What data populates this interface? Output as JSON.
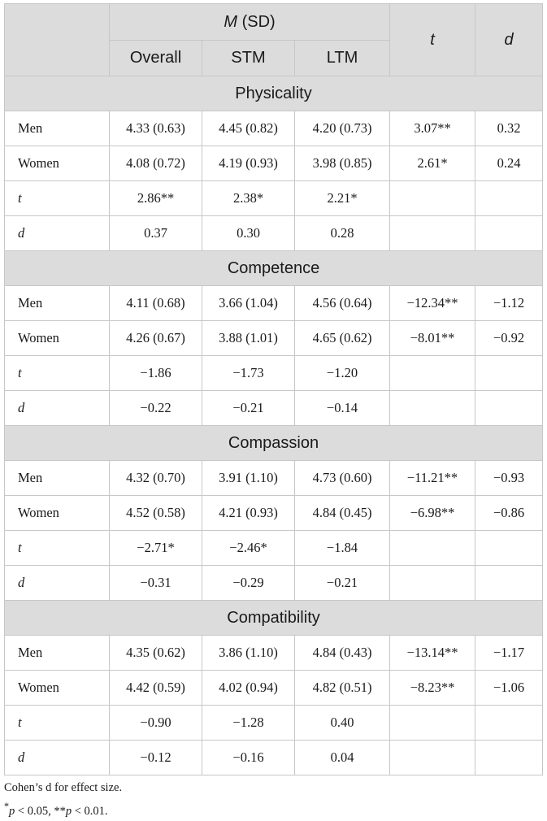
{
  "header": {
    "msd_label": "(SD)",
    "msd_italic": "M",
    "t_label": "t",
    "d_label": "d",
    "columns": [
      "Overall",
      "STM",
      "LTM"
    ]
  },
  "sections": [
    {
      "title": "Physicality",
      "rows": [
        {
          "label": "Men",
          "italic": false,
          "overall": "4.33 (0.63)",
          "stm": "4.45 (0.82)",
          "ltm": "4.20 (0.73)",
          "t": "3.07**",
          "d": "0.32"
        },
        {
          "label": "Women",
          "italic": false,
          "overall": "4.08 (0.72)",
          "stm": "4.19 (0.93)",
          "ltm": "3.98 (0.85)",
          "t": "2.61*",
          "d": "0.24"
        },
        {
          "label": "t",
          "italic": true,
          "overall": "2.86**",
          "stm": "2.38*",
          "ltm": "2.21*",
          "t": "",
          "d": ""
        },
        {
          "label": "d",
          "italic": true,
          "overall": "0.37",
          "stm": "0.30",
          "ltm": "0.28",
          "t": "",
          "d": ""
        }
      ]
    },
    {
      "title": "Competence",
      "rows": [
        {
          "label": "Men",
          "italic": false,
          "overall": "4.11 (0.68)",
          "stm": "3.66 (1.04)",
          "ltm": "4.56 (0.64)",
          "t": "−12.34**",
          "d": "−1.12"
        },
        {
          "label": "Women",
          "italic": false,
          "overall": "4.26 (0.67)",
          "stm": "3.88 (1.01)",
          "ltm": "4.65 (0.62)",
          "t": "−8.01**",
          "d": "−0.92"
        },
        {
          "label": "t",
          "italic": true,
          "overall": "−1.86",
          "stm": "−1.73",
          "ltm": "−1.20",
          "t": "",
          "d": ""
        },
        {
          "label": "d",
          "italic": true,
          "overall": "−0.22",
          "stm": "−0.21",
          "ltm": "−0.14",
          "t": "",
          "d": ""
        }
      ]
    },
    {
      "title": "Compassion",
      "rows": [
        {
          "label": "Men",
          "italic": false,
          "overall": "4.32 (0.70)",
          "stm": "3.91 (1.10)",
          "ltm": "4.73 (0.60)",
          "t": "−11.21**",
          "d": "−0.93"
        },
        {
          "label": "Women",
          "italic": false,
          "overall": "4.52 (0.58)",
          "stm": "4.21 (0.93)",
          "ltm": "4.84 (0.45)",
          "t": "−6.98**",
          "d": "−0.86"
        },
        {
          "label": "t",
          "italic": true,
          "overall": "−2.71*",
          "stm": "−2.46*",
          "ltm": "−1.84",
          "t": "",
          "d": ""
        },
        {
          "label": "d",
          "italic": true,
          "overall": "−0.31",
          "stm": "−0.29",
          "ltm": "−0.21",
          "t": "",
          "d": ""
        }
      ]
    },
    {
      "title": "Compatibility",
      "rows": [
        {
          "label": "Men",
          "italic": false,
          "overall": "4.35 (0.62)",
          "stm": "3.86 (1.10)",
          "ltm": "4.84 (0.43)",
          "t": "−13.14**",
          "d": "−1.17"
        },
        {
          "label": "Women",
          "italic": false,
          "overall": "4.42 (0.59)",
          "stm": "4.02 (0.94)",
          "ltm": "4.82 (0.51)",
          "t": "−8.23**",
          "d": "−1.06"
        },
        {
          "label": "t",
          "italic": true,
          "overall": "−0.90",
          "stm": "−1.28",
          "ltm": "0.40",
          "t": "",
          "d": ""
        },
        {
          "label": "d",
          "italic": true,
          "overall": "−0.12",
          "stm": "−0.16",
          "ltm": "0.04",
          "t": "",
          "d": ""
        }
      ]
    }
  ],
  "notes": {
    "line1": "Cohen’s d for effect size.",
    "line2_star": "*",
    "line2_p1": "p",
    "line2_mid": " < 0.05, **",
    "line2_p2": "p",
    "line2_end": " < 0.01."
  }
}
